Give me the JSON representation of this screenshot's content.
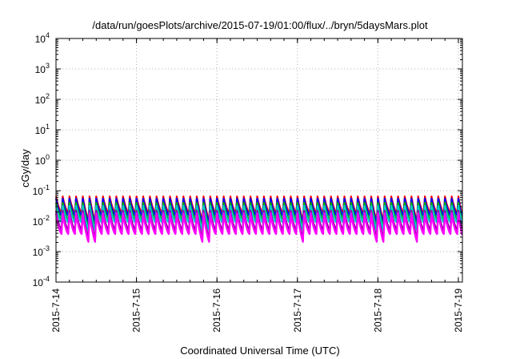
{
  "chart_data": {
    "type": "line",
    "title": "/data/run/goesPlots/archive/2015-07-19/01:00/flux/../bryn/5daysMars.plot",
    "xlabel": "Coordinated Universal Time (UTC)",
    "ylabel": "cGy/day",
    "yscale": "log",
    "ylim_exponent": [
      -4,
      4
    ],
    "y_ticks": [
      {
        "base": "10",
        "exp": "-4"
      },
      {
        "base": "10",
        "exp": "-3"
      },
      {
        "base": "10",
        "exp": "-2"
      },
      {
        "base": "10",
        "exp": "-1"
      },
      {
        "base": "10",
        "exp": "0"
      },
      {
        "base": "10",
        "exp": "1"
      },
      {
        "base": "10",
        "exp": "2"
      },
      {
        "base": "10",
        "exp": "3"
      },
      {
        "base": "10",
        "exp": "4"
      }
    ],
    "x_ticks": [
      "2015-7-14",
      "2015-7-15",
      "2015-7-16",
      "2015-7-17",
      "2015-7-18",
      "2015-7-19"
    ],
    "xlim_days": [
      0,
      5.05
    ],
    "grid": true,
    "series_colors": [
      "#ff0000",
      "#0000ff",
      "#00aa00",
      "#00cccc",
      "#9900aa",
      "#ff00ff"
    ],
    "series_description": "Six periodic sawtooth series (~12 peaks per day), peaks ~0.02-0.07, troughs ~0.003-0.02 cGy/day",
    "series": [
      {
        "peak": 0.065,
        "trough": 0.018,
        "values": [
          0.065,
          0.052,
          0.043,
          0.036,
          0.031,
          0.027,
          0.024,
          0.021,
          0.019,
          0.018
        ]
      },
      {
        "peak": 0.055,
        "trough": 0.015,
        "values": [
          0.055,
          0.044,
          0.036,
          0.03,
          0.026,
          0.022,
          0.02,
          0.018,
          0.016,
          0.015
        ]
      },
      {
        "peak": 0.04,
        "trough": 0.011,
        "values": [
          0.04,
          0.032,
          0.026,
          0.022,
          0.019,
          0.016,
          0.014,
          0.013,
          0.012,
          0.011
        ]
      },
      {
        "peak": 0.032,
        "trough": 0.009,
        "values": [
          0.032,
          0.026,
          0.021,
          0.018,
          0.015,
          0.013,
          0.012,
          0.01,
          0.0095,
          0.009
        ]
      },
      {
        "peak": 0.022,
        "trough": 0.005,
        "values": [
          0.022,
          0.017,
          0.013,
          0.011,
          0.009,
          0.0078,
          0.0068,
          0.006,
          0.0055,
          0.005
        ]
      },
      {
        "peak": 0.018,
        "trough": 0.0038,
        "values": [
          0.018,
          0.013,
          0.01,
          0.0082,
          0.0068,
          0.0058,
          0.005,
          0.0044,
          0.004,
          0.0038
        ]
      }
    ]
  }
}
